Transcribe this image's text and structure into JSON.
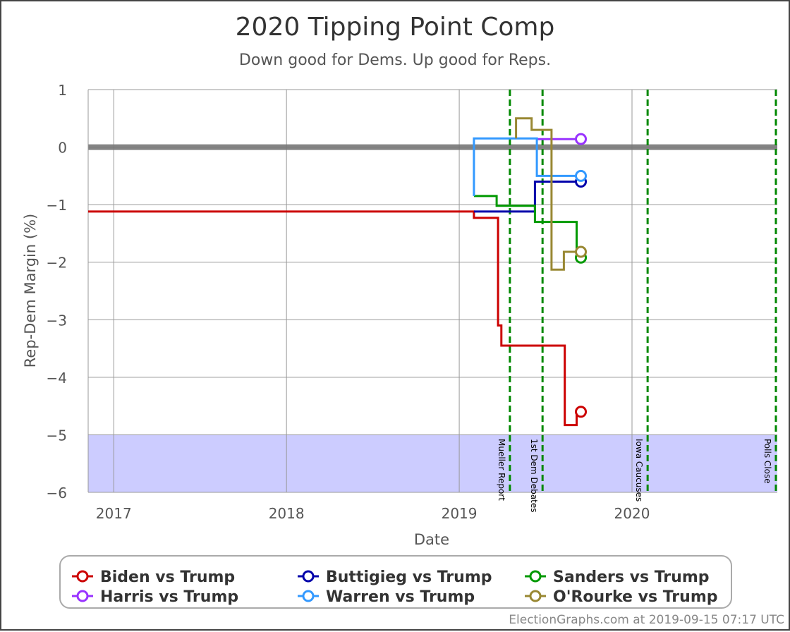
{
  "chart_data": {
    "type": "line",
    "title": "2020 Tipping Point Comp",
    "subtitle": "Down good for Dems. Up good for Reps.",
    "xlabel": "Date",
    "ylabel": "Rep-Dem Margin (%)",
    "xlim": [
      "2016-11-08",
      "2020-11-03"
    ],
    "ylim": [
      -6,
      1
    ],
    "x_ticks": [
      {
        "date": "2017-01-01",
        "label": "2017"
      },
      {
        "date": "2018-01-01",
        "label": "2018"
      },
      {
        "date": "2019-01-01",
        "label": "2019"
      },
      {
        "date": "2020-01-01",
        "label": "2020"
      }
    ],
    "y_ticks": [
      {
        "value": 1,
        "label": "1"
      },
      {
        "value": 0,
        "label": "0"
      },
      {
        "value": -1,
        "label": "−1"
      },
      {
        "value": -2,
        "label": "−2"
      },
      {
        "value": -3,
        "label": "−3"
      },
      {
        "value": -4,
        "label": "−4"
      },
      {
        "value": -5,
        "label": "−5"
      },
      {
        "value": -6,
        "label": "−6"
      }
    ],
    "shaded_band": {
      "from": -6,
      "to": -5,
      "color": "#ccccff"
    },
    "zero_line": {
      "value": 0,
      "color": "#777777"
    },
    "events": [
      {
        "date": "2019-04-18",
        "label": "Mueller Report"
      },
      {
        "date": "2019-06-26",
        "label": "1st Dem Debates"
      },
      {
        "date": "2020-02-03",
        "label": "Iowa Caucuses"
      },
      {
        "date": "2020-11-03",
        "label": "Polls Close"
      }
    ],
    "event_color": "#008800",
    "grid": true,
    "legend_position": "bottom",
    "series": [
      {
        "name": "Biden vs Trump",
        "color": "#cc0000",
        "points": [
          [
            "2016-11-08",
            -1.12
          ],
          [
            "2019-02-01",
            -1.12
          ],
          [
            "2019-02-01",
            -1.23
          ],
          [
            "2019-03-24",
            -1.23
          ],
          [
            "2019-03-24",
            -3.1
          ],
          [
            "2019-03-31",
            -3.1
          ],
          [
            "2019-03-31",
            -3.45
          ],
          [
            "2019-08-12",
            -3.45
          ],
          [
            "2019-08-12",
            -4.83
          ],
          [
            "2019-09-06",
            -4.83
          ],
          [
            "2019-09-06",
            -4.6
          ],
          [
            "2019-09-15",
            -4.6
          ]
        ]
      },
      {
        "name": "Buttigieg vs Trump",
        "color": "#0000aa",
        "points": [
          [
            "2019-02-01",
            -1.12
          ],
          [
            "2019-06-10",
            -1.12
          ],
          [
            "2019-06-10",
            -0.6
          ],
          [
            "2019-09-15",
            -0.6
          ]
        ]
      },
      {
        "name": "Sanders vs Trump",
        "color": "#009900",
        "points": [
          [
            "2019-02-01",
            -0.85
          ],
          [
            "2019-03-21",
            -0.85
          ],
          [
            "2019-03-21",
            -1.02
          ],
          [
            "2019-06-10",
            -1.02
          ],
          [
            "2019-06-10",
            -1.3
          ],
          [
            "2019-09-06",
            -1.3
          ],
          [
            "2019-09-06",
            -1.92
          ],
          [
            "2019-09-15",
            -1.92
          ]
        ]
      },
      {
        "name": "Harris vs Trump",
        "color": "#9933ff",
        "points": [
          [
            "2019-06-14",
            0.14
          ],
          [
            "2019-09-15",
            0.14
          ]
        ]
      },
      {
        "name": "Warren vs Trump",
        "color": "#3399ff",
        "points": [
          [
            "2019-02-01",
            -0.85
          ],
          [
            "2019-02-01",
            0.15
          ],
          [
            "2019-06-14",
            0.15
          ],
          [
            "2019-06-14",
            -0.5
          ],
          [
            "2019-09-15",
            -0.5
          ]
        ]
      },
      {
        "name": "O'Rourke vs Trump",
        "color": "#998833",
        "points": [
          [
            "2019-05-01",
            0.15
          ],
          [
            "2019-05-01",
            0.5
          ],
          [
            "2019-06-03",
            0.5
          ],
          [
            "2019-06-03",
            0.3
          ],
          [
            "2019-07-15",
            0.3
          ],
          [
            "2019-07-15",
            -2.13
          ],
          [
            "2019-08-10",
            -2.13
          ],
          [
            "2019-08-10",
            -1.82
          ],
          [
            "2019-09-15",
            -1.82
          ]
        ]
      }
    ]
  },
  "footer": {
    "credit": "ElectionGraphs.com at 2019-09-15 07:17 UTC"
  }
}
